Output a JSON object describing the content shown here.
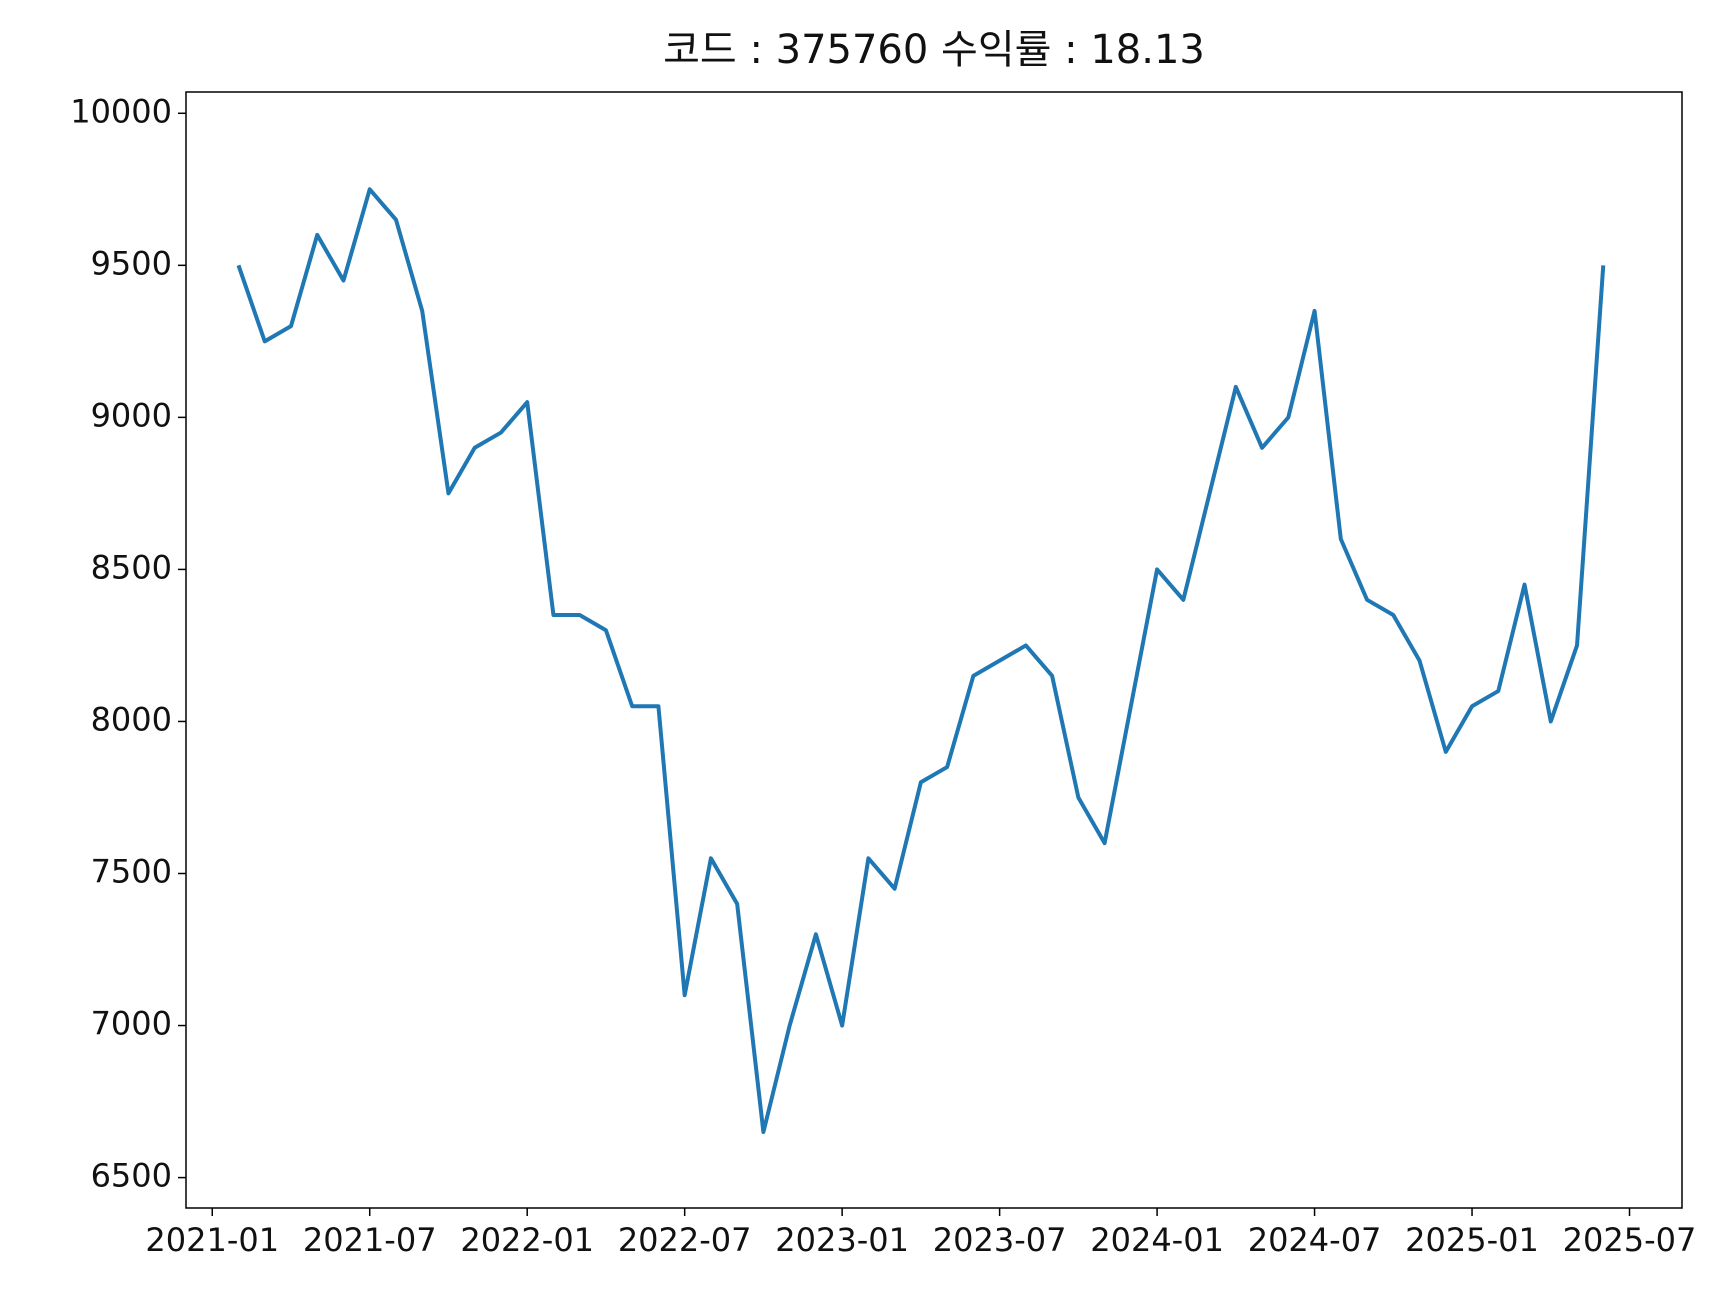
{
  "chart_data": {
    "type": "line",
    "title": "코드 : 375760 수익률 : 18.13",
    "x": [
      "2021-02",
      "2021-03",
      "2021-04",
      "2021-05",
      "2021-06",
      "2021-07",
      "2021-08",
      "2021-09",
      "2021-10",
      "2021-11",
      "2021-12",
      "2022-01",
      "2022-02",
      "2022-03",
      "2022-04",
      "2022-05",
      "2022-06",
      "2022-07",
      "2022-08",
      "2022-09",
      "2022-10",
      "2022-11",
      "2022-12",
      "2023-01",
      "2023-02",
      "2023-03",
      "2023-04",
      "2023-05",
      "2023-06",
      "2023-07",
      "2023-08",
      "2023-09",
      "2023-10",
      "2023-11",
      "2023-12",
      "2024-01",
      "2024-02",
      "2024-03",
      "2024-04",
      "2024-05",
      "2024-06",
      "2024-07",
      "2024-08",
      "2024-09",
      "2024-10",
      "2024-11",
      "2024-12",
      "2025-01",
      "2025-02",
      "2025-03",
      "2025-04",
      "2025-05",
      "2025-06"
    ],
    "series": [
      {
        "name": "375760",
        "color": "#1f77b4",
        "values": [
          9500,
          9250,
          9300,
          9600,
          9450,
          9750,
          9650,
          9350,
          8750,
          8900,
          8950,
          9050,
          8350,
          8350,
          8300,
          8050,
          8050,
          7100,
          7550,
          7400,
          6650,
          7000,
          7300,
          7000,
          7550,
          7450,
          7800,
          7850,
          8150,
          8200,
          8250,
          8150,
          7750,
          7600,
          8050,
          8500,
          8400,
          8750,
          9100,
          8900,
          9000,
          9350,
          8600,
          8400,
          8350,
          8200,
          7900,
          8050,
          8100,
          8450,
          8000,
          8250,
          9500
        ]
      }
    ],
    "xlim": [
      "2020-12",
      "2025-09"
    ],
    "xticks": [
      "2021-01",
      "2021-07",
      "2022-01",
      "2022-07",
      "2023-01",
      "2023-07",
      "2024-01",
      "2024-07",
      "2025-01",
      "2025-07"
    ],
    "ylim": [
      6400,
      10070
    ],
    "yticks": [
      6500,
      7000,
      7500,
      8000,
      8500,
      9000,
      9500,
      10000
    ],
    "grid": false
  }
}
